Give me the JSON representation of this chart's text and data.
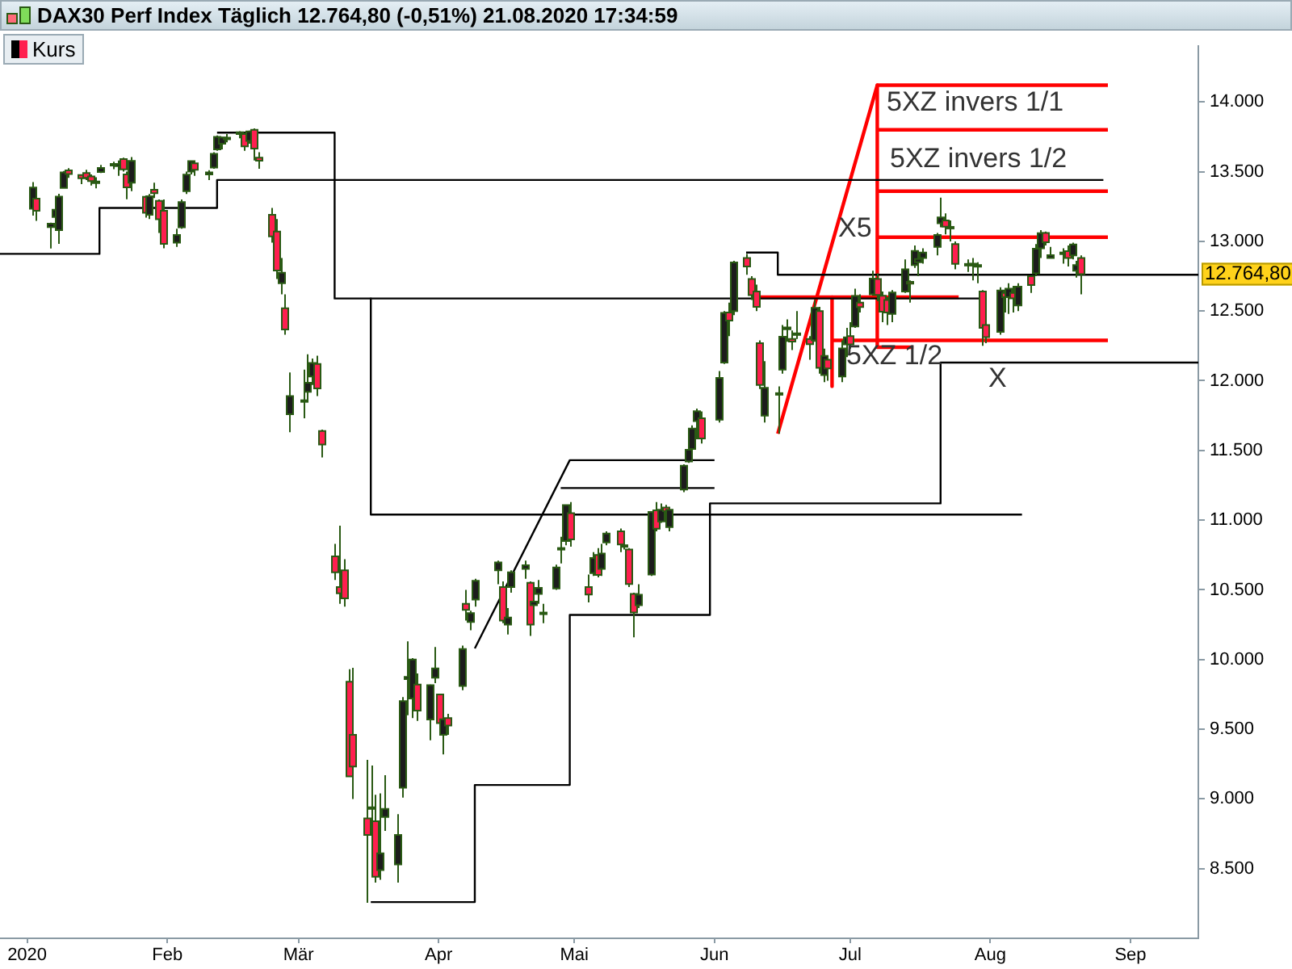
{
  "chart_data": {
    "type": "candlestick",
    "title": "DAX30 Perf Index Täglich 12.764,80 (-0,51%) 21.08.2020 17:34:59",
    "legend": "top left",
    "marker": "none",
    "xlim": [
      "2019-12-26",
      "2020-09-16"
    ],
    "ylim": [
      8000,
      14400
    ],
    "xticks": [
      {
        "value": "2020-01-01",
        "label": "2020"
      },
      {
        "value": "2020-02-01",
        "label": "Feb"
      },
      {
        "value": "2020-03-01",
        "label": "Mär"
      },
      {
        "value": "2020-04-01",
        "label": "Apr"
      },
      {
        "value": "2020-05-01",
        "label": "Mai"
      },
      {
        "value": "2020-06-01",
        "label": "Jun"
      },
      {
        "value": "2020-07-01",
        "label": "Jul"
      },
      {
        "value": "2020-08-01",
        "label": "Aug"
      },
      {
        "value": "2020-09-01",
        "label": "Sep"
      }
    ],
    "yticks": [
      {
        "value": 8500,
        "label": "8.500"
      },
      {
        "value": 9000,
        "label": "9.000"
      },
      {
        "value": 9500,
        "label": "9.500"
      },
      {
        "value": 10000,
        "label": "10.000"
      },
      {
        "value": 10500,
        "label": "10.500"
      },
      {
        "value": 11000,
        "label": "11.000"
      },
      {
        "value": 11500,
        "label": "11.500"
      },
      {
        "value": 12000,
        "label": "12.000"
      },
      {
        "value": 12500,
        "label": "12.500"
      },
      {
        "value": 13000,
        "label": "13.000"
      },
      {
        "value": 13500,
        "label": "13.500"
      },
      {
        "value": 14000,
        "label": "14.000"
      }
    ],
    "series": [
      {
        "name": "Kurs",
        "x": [
          "2020-01-02",
          "2020-01-03",
          "2020-01-06",
          "2020-01-07",
          "2020-01-08",
          "2020-01-09",
          "2020-01-10",
          "2020-01-13",
          "2020-01-14",
          "2020-01-15",
          "2020-01-16",
          "2020-01-17",
          "2020-01-20",
          "2020-01-21",
          "2020-01-22",
          "2020-01-23",
          "2020-01-24",
          "2020-01-27",
          "2020-01-28",
          "2020-01-29",
          "2020-01-30",
          "2020-01-31",
          "2020-02-03",
          "2020-02-04",
          "2020-02-05",
          "2020-02-06",
          "2020-02-07",
          "2020-02-10",
          "2020-02-11",
          "2020-02-12",
          "2020-02-13",
          "2020-02-14",
          "2020-02-17",
          "2020-02-18",
          "2020-02-19",
          "2020-02-20",
          "2020-02-21",
          "2020-02-24",
          "2020-02-25",
          "2020-02-26",
          "2020-02-27",
          "2020-02-28",
          "2020-03-02",
          "2020-03-03",
          "2020-03-04",
          "2020-03-05",
          "2020-03-06",
          "2020-03-09",
          "2020-03-10",
          "2020-03-11",
          "2020-03-12",
          "2020-03-13",
          "2020-03-16",
          "2020-03-17",
          "2020-03-18",
          "2020-03-19",
          "2020-03-20",
          "2020-03-23",
          "2020-03-24",
          "2020-03-25",
          "2020-03-26",
          "2020-03-27",
          "2020-03-30",
          "2020-03-31",
          "2020-04-01",
          "2020-04-02",
          "2020-04-03",
          "2020-04-06",
          "2020-04-07",
          "2020-04-08",
          "2020-04-09",
          "2020-04-14",
          "2020-04-15",
          "2020-04-16",
          "2020-04-17",
          "2020-04-20",
          "2020-04-21",
          "2020-04-22",
          "2020-04-23",
          "2020-04-24",
          "2020-04-27",
          "2020-04-28",
          "2020-04-29",
          "2020-04-30",
          "2020-05-04",
          "2020-05-05",
          "2020-05-06",
          "2020-05-07",
          "2020-05-08",
          "2020-05-11",
          "2020-05-12",
          "2020-05-13",
          "2020-05-14",
          "2020-05-15",
          "2020-05-18",
          "2020-05-19",
          "2020-05-20",
          "2020-05-21",
          "2020-05-22",
          "2020-05-25",
          "2020-05-26",
          "2020-05-27",
          "2020-05-28",
          "2020-05-29",
          "2020-06-02",
          "2020-06-03",
          "2020-06-04",
          "2020-06-05",
          "2020-06-08",
          "2020-06-09",
          "2020-06-10",
          "2020-06-11",
          "2020-06-12",
          "2020-06-15",
          "2020-06-16",
          "2020-06-17",
          "2020-06-18",
          "2020-06-19",
          "2020-06-22",
          "2020-06-23",
          "2020-06-24",
          "2020-06-25",
          "2020-06-26",
          "2020-06-29",
          "2020-06-30",
          "2020-07-01",
          "2020-07-02",
          "2020-07-03",
          "2020-07-06",
          "2020-07-07",
          "2020-07-08",
          "2020-07-09",
          "2020-07-10",
          "2020-07-13",
          "2020-07-14",
          "2020-07-15",
          "2020-07-16",
          "2020-07-17",
          "2020-07-20",
          "2020-07-21",
          "2020-07-22",
          "2020-07-23",
          "2020-07-24",
          "2020-07-27",
          "2020-07-28",
          "2020-07-29",
          "2020-07-30",
          "2020-07-31",
          "2020-08-03",
          "2020-08-04",
          "2020-08-05",
          "2020-08-06",
          "2020-08-07",
          "2020-08-10",
          "2020-08-11",
          "2020-08-12",
          "2020-08-13",
          "2020-08-14",
          "2020-08-17",
          "2020-08-18",
          "2020-08-19",
          "2020-08-20",
          "2020-08-21"
        ],
        "ohlc": [
          [
            13234,
            13425,
            13184,
            13386
          ],
          [
            13306,
            13313,
            13147,
            13219
          ],
          [
            13102,
            13134,
            12948,
            13127
          ],
          [
            13174,
            13283,
            13170,
            13227
          ],
          [
            13080,
            13341,
            12982,
            13321
          ],
          [
            13383,
            13505,
            13381,
            13495
          ],
          [
            13509,
            13525,
            13456,
            13483
          ],
          [
            13476,
            13476,
            13410,
            13452
          ],
          [
            13490,
            13513,
            13440,
            13456
          ],
          [
            13465,
            13480,
            13400,
            13432
          ],
          [
            13430,
            13460,
            13380,
            13429
          ],
          [
            13497,
            13548,
            13490,
            13526
          ],
          [
            13556,
            13572,
            13518,
            13549
          ],
          [
            13540,
            13580,
            13470,
            13556
          ],
          [
            13590,
            13600,
            13500,
            13516
          ],
          [
            13480,
            13500,
            13302,
            13388
          ],
          [
            13420,
            13604,
            13360,
            13577
          ],
          [
            13320,
            13330,
            13170,
            13205
          ],
          [
            13190,
            13340,
            13160,
            13324
          ],
          [
            13370,
            13420,
            13310,
            13346
          ],
          [
            13290,
            13300,
            13060,
            13158
          ],
          [
            13220,
            13300,
            12950,
            12982
          ],
          [
            12990,
            13090,
            12960,
            13046
          ],
          [
            13100,
            13300,
            13090,
            13281
          ],
          [
            13360,
            13500,
            13340,
            13479
          ],
          [
            13500,
            13575,
            13480,
            13575
          ],
          [
            13560,
            13570,
            13470,
            13514
          ],
          [
            13480,
            13510,
            13440,
            13494
          ],
          [
            13530,
            13640,
            13520,
            13628
          ],
          [
            13660,
            13760,
            13650,
            13750
          ],
          [
            13700,
            13750,
            13660,
            13745
          ],
          [
            13740,
            13770,
            13710,
            13744
          ],
          [
            13770,
            13790,
            13740,
            13783
          ],
          [
            13770,
            13780,
            13650,
            13681
          ],
          [
            13720,
            13795,
            13700,
            13789
          ],
          [
            13800,
            13810,
            13580,
            13665
          ],
          [
            13600,
            13640,
            13520,
            13579
          ],
          [
            13190,
            13240,
            12990,
            13035
          ],
          [
            13070,
            13160,
            12730,
            12791
          ],
          [
            12700,
            12880,
            12620,
            12775
          ],
          [
            12520,
            12620,
            12330,
            12368
          ],
          [
            11760,
            12060,
            11630,
            11890
          ],
          [
            11860,
            12080,
            11730,
            11858
          ],
          [
            11920,
            12190,
            11860,
            11986
          ],
          [
            12030,
            12160,
            11970,
            12128
          ],
          [
            12120,
            12180,
            11890,
            11945
          ],
          [
            11640,
            11650,
            11450,
            11542
          ],
          [
            10740,
            10830,
            10570,
            10625
          ],
          [
            10520,
            10960,
            10400,
            10475
          ],
          [
            10640,
            10720,
            10380,
            10439
          ],
          [
            9840,
            9930,
            9160,
            9161
          ],
          [
            9460,
            9940,
            9000,
            9232
          ],
          [
            8860,
            9280,
            8255,
            8742
          ],
          [
            8940,
            9240,
            8600,
            8939
          ],
          [
            8840,
            9030,
            8400,
            8442
          ],
          [
            8490,
            9040,
            8420,
            8610
          ],
          [
            8870,
            9170,
            8770,
            8929
          ],
          [
            8530,
            8890,
            8400,
            8742
          ],
          [
            9080,
            9730,
            9010,
            9701
          ],
          [
            9860,
            10130,
            9600,
            9875
          ],
          [
            9720,
            10010,
            9580,
            10000
          ],
          [
            9820,
            9900,
            9560,
            9633
          ],
          [
            9570,
            9820,
            9420,
            9816
          ],
          [
            9870,
            10090,
            9830,
            9936
          ],
          [
            9750,
            9750,
            9480,
            9544
          ],
          [
            9460,
            9600,
            9320,
            9571
          ],
          [
            9580,
            9610,
            9460,
            9526
          ],
          [
            9810,
            10100,
            9780,
            10075
          ],
          [
            10400,
            10500,
            10280,
            10356
          ],
          [
            10270,
            10350,
            10210,
            10333
          ],
          [
            10430,
            10580,
            10380,
            10565
          ],
          [
            10640,
            10710,
            10540,
            10697
          ],
          [
            10520,
            10560,
            10260,
            10280
          ],
          [
            10250,
            10370,
            10180,
            10301
          ],
          [
            10520,
            10640,
            10480,
            10626
          ],
          [
            10650,
            10710,
            10580,
            10676
          ],
          [
            10550,
            10560,
            10170,
            10250
          ],
          [
            10390,
            10470,
            10330,
            10416
          ],
          [
            10470,
            10570,
            10400,
            10514
          ],
          [
            10330,
            10400,
            10260,
            10337
          ],
          [
            10510,
            10680,
            10500,
            10660
          ],
          [
            10800,
            10880,
            10690,
            10796
          ],
          [
            10850,
            11110,
            10820,
            11108
          ],
          [
            11050,
            11130,
            10810,
            10862
          ],
          [
            10520,
            10610,
            10410,
            10467
          ],
          [
            10620,
            10770,
            10600,
            10729
          ],
          [
            10750,
            10800,
            10590,
            10607
          ],
          [
            10650,
            10830,
            10600,
            10760
          ],
          [
            10840,
            10920,
            10820,
            10904
          ],
          [
            10920,
            10940,
            10770,
            10825
          ],
          [
            10810,
            10860,
            10790,
            10820
          ],
          [
            10790,
            10800,
            10520,
            10542
          ],
          [
            10470,
            10480,
            10160,
            10337
          ],
          [
            10390,
            10540,
            10370,
            10465
          ],
          [
            10610,
            11060,
            10600,
            11058
          ],
          [
            11070,
            11130,
            10920,
            10939
          ],
          [
            10990,
            11120,
            10980,
            11075
          ],
          [
            11090,
            11110,
            10980,
            11065
          ],
          [
            10950,
            11080,
            10920,
            11074
          ],
          [
            11220,
            11400,
            11200,
            11391
          ],
          [
            11420,
            11560,
            11410,
            11505
          ],
          [
            11510,
            11680,
            11470,
            11657
          ],
          [
            11710,
            11800,
            11580,
            11781
          ],
          [
            11730,
            11780,
            11550,
            11586
          ],
          [
            11720,
            12070,
            11700,
            12021
          ],
          [
            12130,
            12500,
            12120,
            12487
          ],
          [
            12490,
            12560,
            12320,
            12431
          ],
          [
            12500,
            12860,
            12470,
            12848
          ],
          [
            12880,
            12910,
            12760,
            12820
          ],
          [
            12730,
            12750,
            12580,
            12614
          ],
          [
            12640,
            12690,
            12500,
            12530
          ],
          [
            12270,
            12290,
            11940,
            11970
          ],
          [
            11750,
            12140,
            11700,
            11949
          ],
          [
            11900,
            11960,
            11620,
            11911
          ],
          [
            12080,
            12400,
            12050,
            12315
          ],
          [
            12370,
            12440,
            12280,
            12382
          ],
          [
            12300,
            12360,
            12220,
            12281
          ],
          [
            12340,
            12500,
            12300,
            12331
          ],
          [
            12300,
            12320,
            12150,
            12262
          ],
          [
            12290,
            12580,
            12280,
            12523
          ],
          [
            12500,
            12530,
            12050,
            12093
          ],
          [
            12040,
            12230,
            11990,
            12178
          ],
          [
            12150,
            12180,
            12000,
            12089
          ],
          [
            12030,
            12290,
            11990,
            12232
          ],
          [
            12260,
            12380,
            12170,
            12311
          ],
          [
            12320,
            12420,
            12230,
            12260
          ],
          [
            12390,
            12660,
            12380,
            12608
          ],
          [
            12560,
            12620,
            12490,
            12528
          ],
          [
            12620,
            12790,
            12610,
            12733
          ],
          [
            12730,
            12770,
            12570,
            12616
          ],
          [
            12610,
            12640,
            12420,
            12495
          ],
          [
            12580,
            12600,
            12400,
            12489
          ],
          [
            12480,
            12650,
            12420,
            12633
          ],
          [
            12640,
            12870,
            12630,
            12800
          ],
          [
            12710,
            12720,
            12560,
            12697
          ],
          [
            12830,
            12970,
            12810,
            12931
          ],
          [
            12850,
            12900,
            12750,
            12874
          ],
          [
            12880,
            12950,
            12840,
            12920
          ],
          [
            12960,
            13060,
            12900,
            13046
          ],
          [
            13130,
            13313,
            13100,
            13171
          ],
          [
            13150,
            13200,
            13050,
            13105
          ],
          [
            13100,
            13150,
            13000,
            13104
          ],
          [
            12980,
            13000,
            12800,
            12838
          ],
          [
            12830,
            12870,
            12780,
            12838
          ],
          [
            12840,
            12880,
            12720,
            12835
          ],
          [
            12830,
            12850,
            12700,
            12822
          ],
          [
            12640,
            12650,
            12250,
            12379
          ],
          [
            12400,
            12440,
            12270,
            12313
          ],
          [
            12350,
            12670,
            12330,
            12647
          ],
          [
            12630,
            12640,
            12490,
            12600
          ],
          [
            12600,
            12700,
            12480,
            12660
          ],
          [
            12630,
            12680,
            12490,
            12591
          ],
          [
            12540,
            12700,
            12500,
            12675
          ],
          [
            12750,
            12750,
            12630,
            12687
          ],
          [
            12770,
            12980,
            12750,
            12947
          ],
          [
            12950,
            13080,
            12880,
            13058
          ],
          [
            13060,
            13070,
            12970,
            12994
          ],
          [
            12880,
            12960,
            12880,
            12901
          ],
          [
            12910,
            12950,
            12840,
            12920
          ],
          [
            12930,
            12970,
            12820,
            12881
          ],
          [
            12900,
            12990,
            12870,
            12977
          ],
          [
            12790,
            12860,
            12740,
            12830
          ],
          [
            12880,
            12900,
            12620,
            12764.8
          ]
        ]
      },
      {
        "type": "line",
        "color": "#000000",
        "x": [
          "2019-12-26",
          "2020-01-17",
          "2020-01-17",
          "2020-02-12",
          "2020-02-12",
          "2020-08-26"
        ],
        "values": [
          12910,
          12910,
          13240,
          13240,
          13440,
          13440
        ]
      },
      {
        "type": "line",
        "color": "#000000",
        "x": [
          "2020-02-12",
          "2020-03-09",
          "2020-03-09",
          "2020-07-30"
        ],
        "values": [
          13780,
          13780,
          12590,
          12590
        ]
      },
      {
        "type": "line",
        "color": "#000000",
        "x": [
          "2020-03-17",
          "2020-03-17",
          "2020-08-08"
        ],
        "values": [
          12590,
          11040,
          11040
        ]
      },
      {
        "type": "line",
        "color": "#000000",
        "x": [
          "2020-03-17",
          "2020-04-09",
          "2020-04-09",
          "2020-04-30",
          "2020-04-30",
          "2020-05-31",
          "2020-05-31",
          "2020-07-21",
          "2020-07-21",
          "2020-09-16"
        ],
        "values": [
          8260,
          8260,
          9100,
          9100,
          10320,
          10320,
          11120,
          11120,
          12130,
          12130
        ]
      },
      {
        "type": "line",
        "color": "#000000",
        "x": [
          "2020-04-09",
          "2020-04-30",
          "2020-06-01"
        ],
        "values": [
          10080,
          11430,
          11430
        ]
      },
      {
        "type": "line",
        "color": "#000000",
        "x": [
          "2020-04-28",
          "2020-06-01"
        ],
        "values": [
          11230,
          11230
        ]
      },
      {
        "type": "line",
        "color": "#000000",
        "x": [
          "2020-06-08",
          "2020-06-15",
          "2020-06-15",
          "2020-09-16"
        ],
        "values": [
          12920,
          12920,
          12760,
          12760
        ]
      },
      {
        "type": "line",
        "color": "#ff0000",
        "x": [
          "2020-06-15",
          "2020-07-07",
          "2020-08-27"
        ],
        "values": [
          11620,
          14120,
          14120
        ]
      },
      {
        "type": "line",
        "color": "#ff0000",
        "x": [
          "2020-07-07",
          "2020-07-07",
          "2020-07-15"
        ],
        "values": [
          14120,
          12240,
          12240
        ]
      },
      {
        "type": "line",
        "color": "#ff0000",
        "x": [
          "2020-07-07",
          "2020-08-27"
        ],
        "values": [
          13800,
          13800
        ]
      },
      {
        "type": "line",
        "color": "#ff0000",
        "x": [
          "2020-07-07",
          "2020-08-27"
        ],
        "values": [
          13360,
          13360
        ]
      },
      {
        "type": "line",
        "color": "#ff0000",
        "x": [
          "2020-07-07",
          "2020-08-27"
        ],
        "values": [
          13030,
          13030
        ]
      },
      {
        "type": "line",
        "color": "#ff0000",
        "x": [
          "2020-06-27",
          "2020-08-27"
        ],
        "values": [
          12290,
          12290
        ]
      },
      {
        "type": "line",
        "color": "#ff0000",
        "x": [
          "2020-06-10",
          "2020-07-25"
        ],
        "values": [
          12600,
          12600
        ]
      },
      {
        "type": "line",
        "color": "#ff0000",
        "x": [
          "2020-06-27",
          "2020-06-27"
        ],
        "values": [
          12600,
          11960
        ]
      }
    ],
    "annotations": [
      "5XZ invers 1/1",
      "5XZ invers 1/2",
      "X5",
      "5XZ 1/2",
      "X",
      "12.764,80"
    ]
  }
}
